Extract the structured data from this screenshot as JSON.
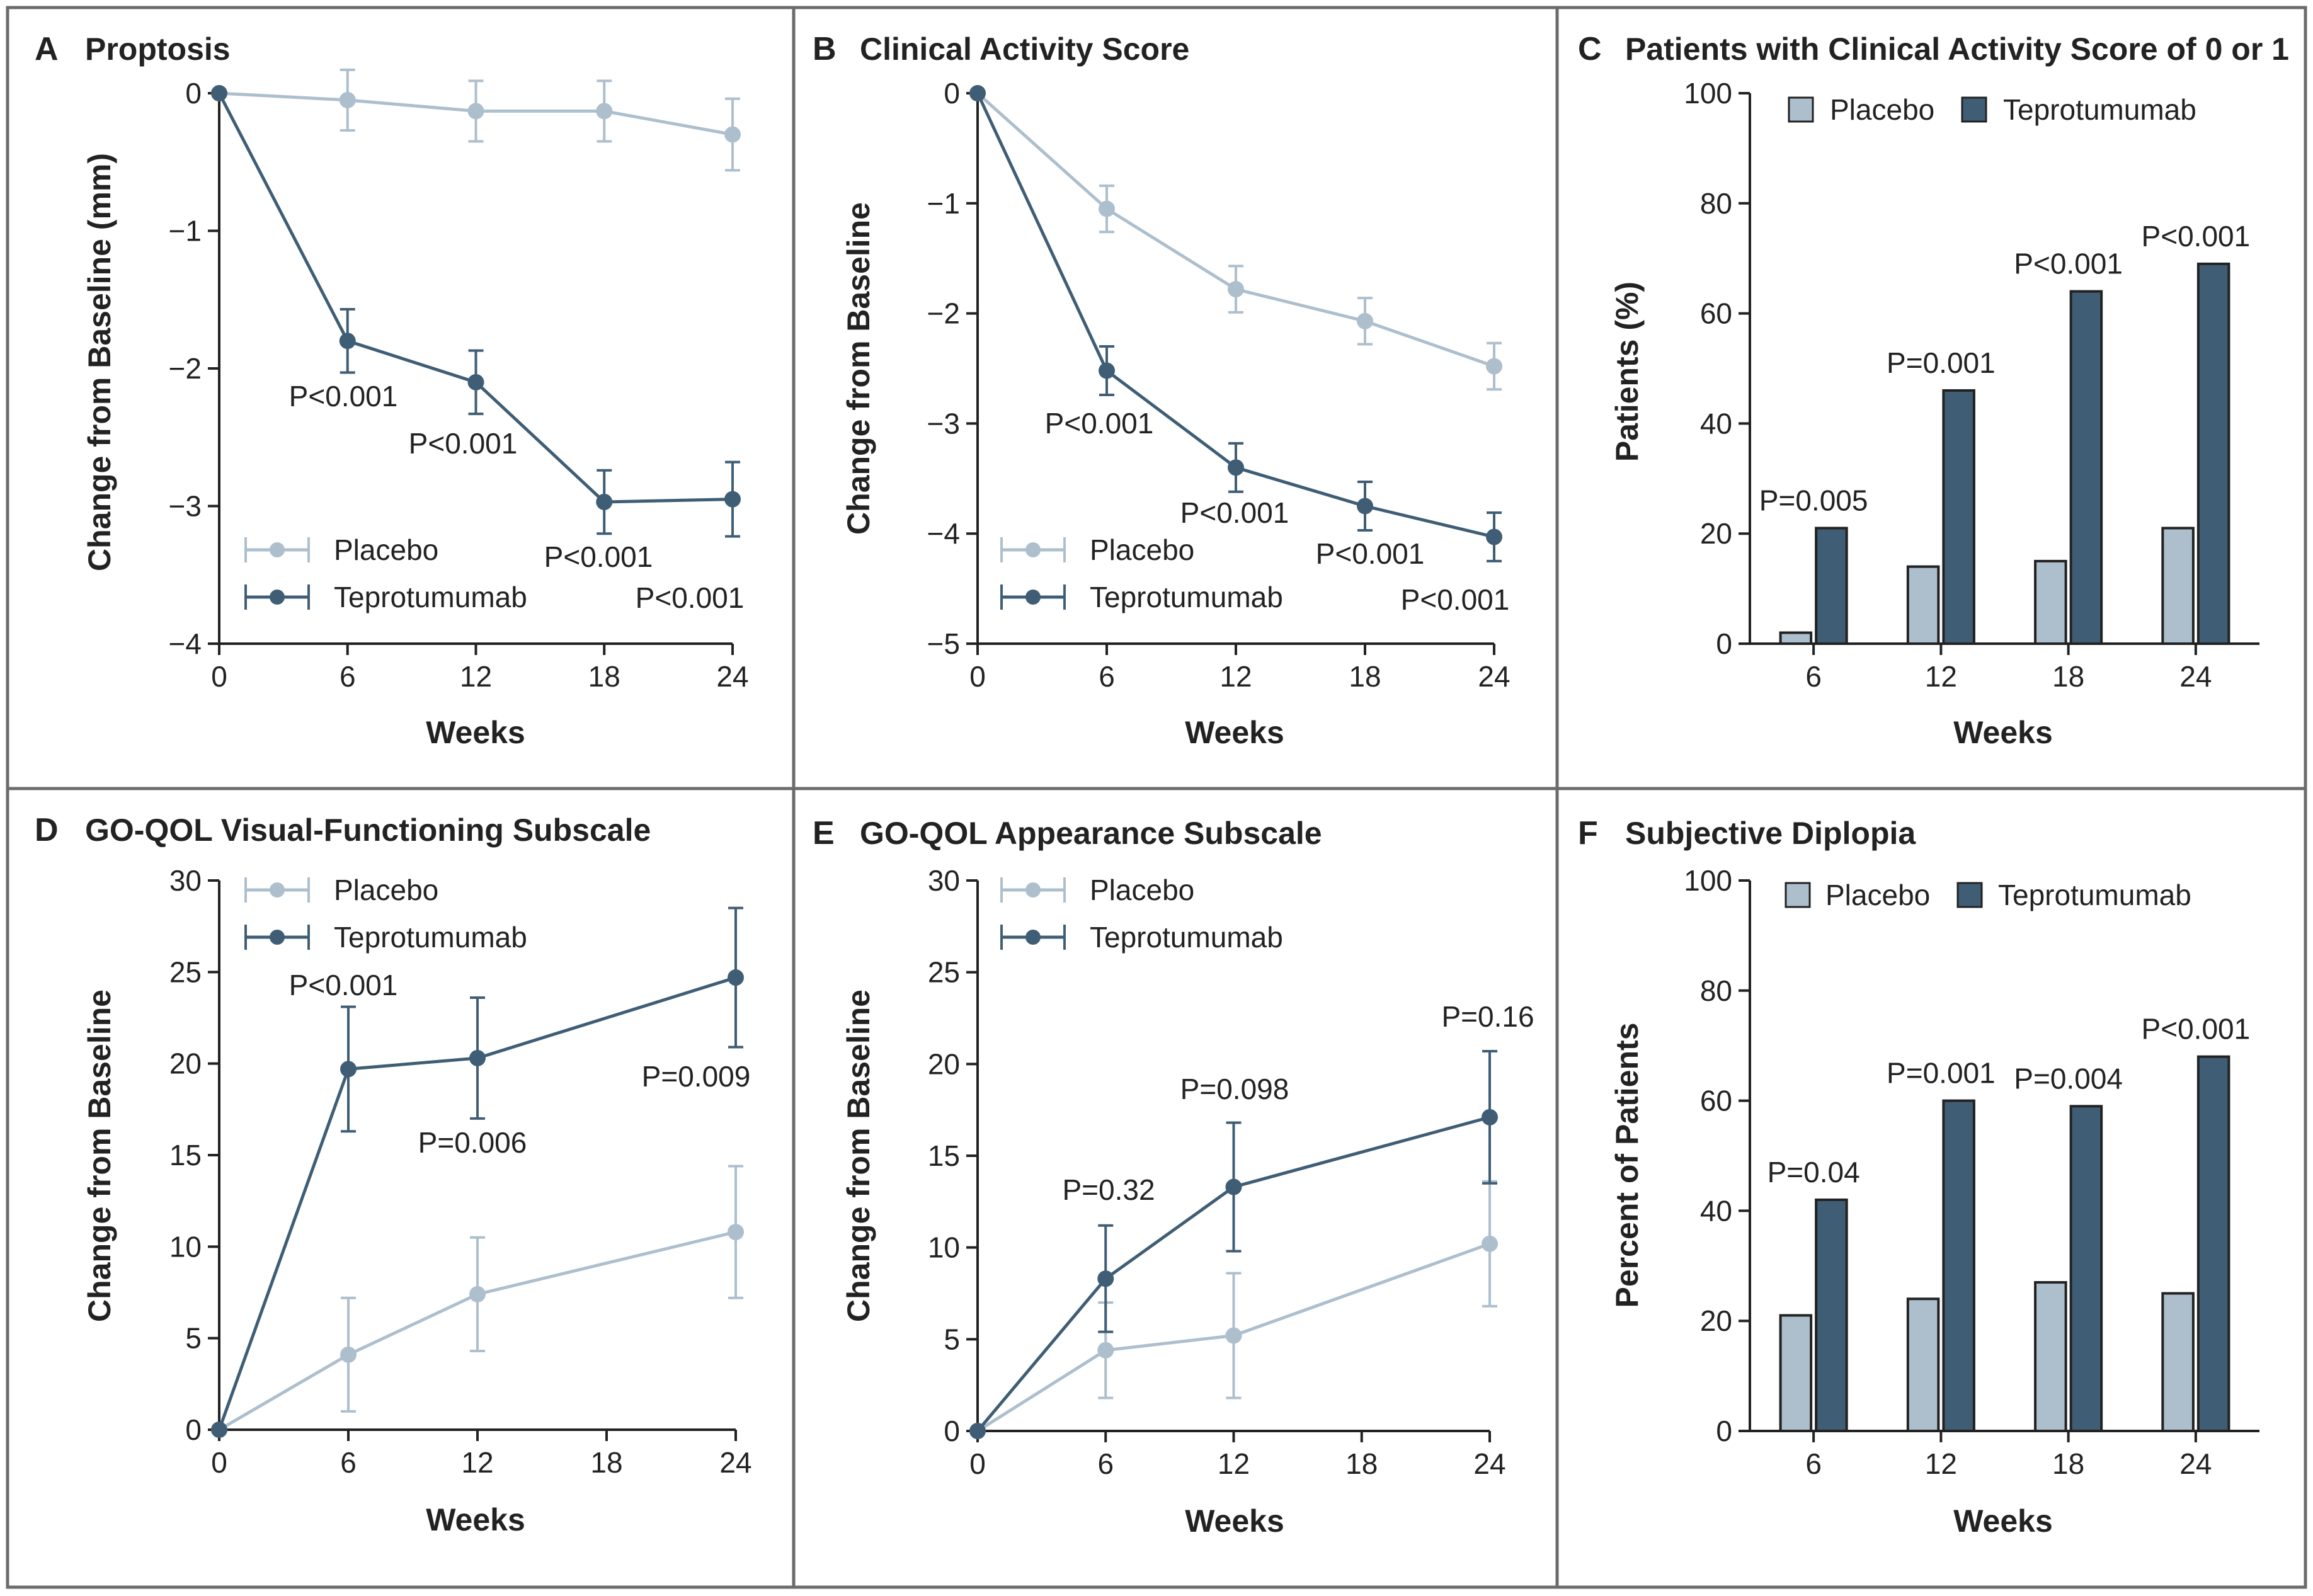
{
  "colors": {
    "placebo": "#adbfcd",
    "teprotumumab": "#3f5e75",
    "frame": "#6b6b6b",
    "axis": "#222222",
    "text": "#222222"
  },
  "chart_data": [
    {
      "id": "A",
      "type": "line",
      "letter": "A",
      "title": "Proptosis",
      "xlabel": "Weeks",
      "ylabel": "Change from Baseline (mm)",
      "x": [
        0,
        6,
        12,
        18,
        24
      ],
      "xticks": [
        "0",
        "6",
        "12",
        "18",
        "24"
      ],
      "xlim": [
        0,
        24
      ],
      "ylim": [
        -4,
        0
      ],
      "yticks": [
        0,
        -1,
        -2,
        -3,
        -4
      ],
      "ytick_labels": [
        "0",
        "−1",
        "−2",
        "−3",
        "−4"
      ],
      "legend": {
        "position": "bottom-left"
      },
      "series": [
        {
          "name": "Placebo",
          "values": [
            0,
            -0.05,
            -0.13,
            -0.13,
            -0.3
          ],
          "err": [
            0,
            0.22,
            0.22,
            0.22,
            0.26
          ]
        },
        {
          "name": "Teprotumumab",
          "values": [
            0,
            -1.8,
            -2.1,
            -2.97,
            -2.95
          ],
          "err": [
            0,
            0.23,
            0.23,
            0.23,
            0.27
          ]
        }
      ],
      "annotations": [
        {
          "text": "P<0.001",
          "x": 6
        },
        {
          "text": "P<0.001",
          "x": 12
        },
        {
          "text": "P<0.001",
          "x": 18
        },
        {
          "text": "P<0.001",
          "x": 24
        }
      ]
    },
    {
      "id": "B",
      "type": "line",
      "letter": "B",
      "title": "Clinical Activity Score",
      "xlabel": "Weeks",
      "ylabel": "Change from Baseline",
      "x": [
        0,
        6,
        12,
        18,
        24
      ],
      "xticks": [
        "0",
        "6",
        "12",
        "18",
        "24"
      ],
      "xlim": [
        0,
        24
      ],
      "ylim": [
        -5,
        0
      ],
      "yticks": [
        0,
        -1,
        -2,
        -3,
        -4,
        -5
      ],
      "ytick_labels": [
        "0",
        "−1",
        "−2",
        "−3",
        "−4",
        "−5"
      ],
      "legend": {
        "position": "bottom-left"
      },
      "series": [
        {
          "name": "Placebo",
          "values": [
            0,
            -1.05,
            -1.78,
            -2.07,
            -2.48
          ],
          "err": [
            0,
            0.21,
            0.21,
            0.21,
            0.21
          ]
        },
        {
          "name": "Teprotumumab",
          "values": [
            0,
            -2.52,
            -3.4,
            -3.75,
            -4.03
          ],
          "err": [
            0,
            0.22,
            0.22,
            0.22,
            0.22
          ]
        }
      ],
      "annotations": [
        {
          "text": "P<0.001",
          "x": 6
        },
        {
          "text": "P<0.001",
          "x": 12
        },
        {
          "text": "P<0.001",
          "x": 18
        },
        {
          "text": "P<0.001",
          "x": 24
        }
      ]
    },
    {
      "id": "C",
      "type": "bar",
      "letter": "C",
      "title": "Patients with Clinical Activity Score of 0 or 1",
      "xlabel": "Weeks",
      "ylabel": "Patients (%)",
      "categories": [
        "6",
        "12",
        "18",
        "24"
      ],
      "ylim": [
        0,
        100
      ],
      "yticks": [
        0,
        20,
        40,
        60,
        80,
        100
      ],
      "ytick_labels": [
        "0",
        "20",
        "40",
        "60",
        "80",
        "100"
      ],
      "legend": {
        "position": "top"
      },
      "series": [
        {
          "name": "Placebo",
          "values": [
            2,
            14,
            15,
            21
          ]
        },
        {
          "name": "Teprotumumab",
          "values": [
            21,
            46,
            64,
            69
          ]
        }
      ],
      "annotations": [
        "P=0.005",
        "P=0.001",
        "P<0.001",
        "P<0.001"
      ]
    },
    {
      "id": "D",
      "type": "line",
      "letter": "D",
      "title": "GO-QOL Visual-Functioning Subscale",
      "xlabel": "Weeks",
      "ylabel": "Change from Baseline",
      "x": [
        0,
        6,
        12,
        24
      ],
      "xticks": [
        "0",
        "6",
        "12",
        "18",
        "24"
      ],
      "xtick_values": [
        0,
        6,
        12,
        18,
        24
      ],
      "xlim": [
        0,
        24
      ],
      "ylim": [
        0,
        30
      ],
      "yticks": [
        0,
        5,
        10,
        15,
        20,
        25,
        30
      ],
      "ytick_labels": [
        "0",
        "5",
        "10",
        "15",
        "20",
        "25",
        "30"
      ],
      "legend": {
        "position": "top-left"
      },
      "series": [
        {
          "name": "Placebo",
          "values": [
            0,
            4.1,
            7.4,
            10.8
          ],
          "err": [
            0,
            3.1,
            3.1,
            3.6
          ]
        },
        {
          "name": "Teprotumumab",
          "values": [
            0,
            19.7,
            20.3,
            24.7
          ],
          "err": [
            0,
            3.4,
            3.3,
            3.8
          ]
        }
      ],
      "annotations": [
        {
          "text": "P<0.001",
          "x": 6
        },
        {
          "text": "P=0.006",
          "x": 12
        },
        {
          "text": "P=0.009",
          "x": 24
        }
      ]
    },
    {
      "id": "E",
      "type": "line",
      "letter": "E",
      "title": "GO-QOL  Appearance Subscale",
      "xlabel": "Weeks",
      "ylabel": "Change from Baseline",
      "x": [
        0,
        6,
        12,
        24
      ],
      "xticks": [
        "0",
        "6",
        "12",
        "18",
        "24"
      ],
      "xtick_values": [
        0,
        6,
        12,
        18,
        24
      ],
      "xlim": [
        0,
        24
      ],
      "ylim": [
        0,
        30
      ],
      "yticks": [
        0,
        5,
        10,
        15,
        20,
        25,
        30
      ],
      "ytick_labels": [
        "0",
        "5",
        "10",
        "15",
        "20",
        "25",
        "30"
      ],
      "legend": {
        "position": "top-left"
      },
      "series": [
        {
          "name": "Placebo",
          "values": [
            0,
            4.4,
            5.2,
            10.2
          ],
          "err": [
            0,
            2.6,
            3.4,
            3.4
          ]
        },
        {
          "name": "Teprotumumab",
          "values": [
            0,
            8.3,
            13.3,
            17.1
          ],
          "err": [
            0,
            2.9,
            3.5,
            3.6
          ]
        }
      ],
      "annotations": [
        {
          "text": "P=0.32",
          "x": 6
        },
        {
          "text": "P=0.098",
          "x": 12
        },
        {
          "text": "P=0.16",
          "x": 24
        }
      ]
    },
    {
      "id": "F",
      "type": "bar",
      "letter": "F",
      "title": "Subjective Diplopia",
      "xlabel": "Weeks",
      "ylabel": "Percent of Patients",
      "categories": [
        "6",
        "12",
        "18",
        "24"
      ],
      "ylim": [
        0,
        100
      ],
      "yticks": [
        0,
        20,
        40,
        60,
        80,
        100
      ],
      "ytick_labels": [
        "0",
        "20",
        "40",
        "60",
        "80",
        "100"
      ],
      "legend": {
        "position": "top"
      },
      "series": [
        {
          "name": "Placebo",
          "values": [
            21,
            24,
            27,
            25
          ]
        },
        {
          "name": "Teprotumumab",
          "values": [
            42,
            60,
            59,
            68
          ]
        }
      ],
      "annotations": [
        "P=0.04",
        "P=0.001",
        "P=0.004",
        "P<0.001"
      ]
    }
  ]
}
